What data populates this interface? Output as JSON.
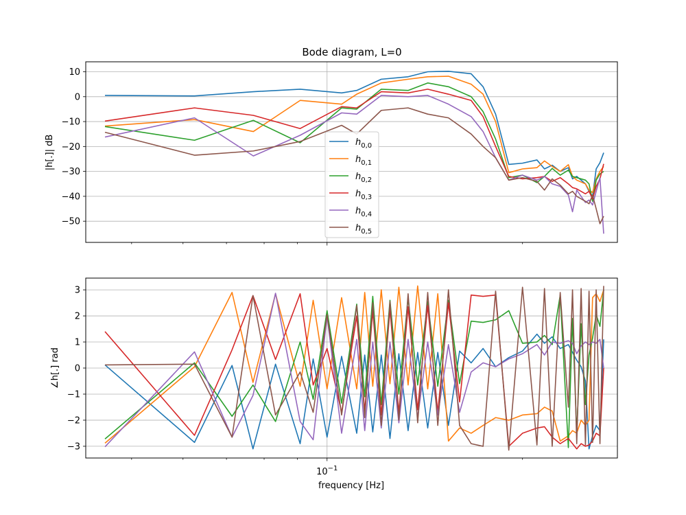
{
  "chart_data": [
    {
      "type": "line",
      "title": "Bode diagram, L=0",
      "ylabel": "|h[.]| dB",
      "xlabel": "",
      "xscale": "log",
      "xlim": [
        0.0425,
        0.28
      ],
      "ylim": [
        -58.5,
        14
      ],
      "yticks": [
        10,
        0,
        -10,
        -20,
        -30,
        -40,
        -50
      ],
      "xticks": [
        {
          "value": 0.1,
          "label": "10",
          "exp": "−1"
        }
      ],
      "grid": true,
      "legend": {
        "placement": "center",
        "entries": [
          "h",
          "h",
          "h",
          "h",
          "h",
          "h"
        ],
        "subscripts": [
          "0,0",
          "0,1",
          "0,2",
          "0,3",
          "0,4",
          "0,5"
        ]
      },
      "x": [
        0.0455,
        0.0625,
        0.077,
        0.0909,
        0.1053,
        0.1111,
        0.1212,
        0.1333,
        0.1429,
        0.1538,
        0.1667,
        0.1739,
        0.1818,
        0.1905,
        0.2,
        0.2105,
        0.2162,
        0.2222,
        0.2286,
        0.2353,
        0.2388,
        0.2424,
        0.25,
        0.2532,
        0.2564,
        0.2597,
        0.2632,
        0.2667
      ],
      "series": [
        {
          "values": [
            0.5,
            0.3,
            2.0,
            3.0,
            1.5,
            2.5,
            7.0,
            8.0,
            10.0,
            10.2,
            9.2,
            4.0,
            -7.0,
            -27.2,
            -26.7,
            -25.4,
            -29.0,
            -27.5,
            -30.0,
            -28.5,
            -33.0,
            -32.0,
            -35.0,
            -38.0,
            -40.0,
            -29.0,
            -26.5,
            -22.5
          ]
        },
        {
          "values": [
            -11.8,
            -9.2,
            -14.0,
            -1.5,
            -3.0,
            1.0,
            5.5,
            7.0,
            8.0,
            8.2,
            5.0,
            1.0,
            -10.0,
            -30.5,
            -29.0,
            -28.5,
            -25.8,
            -28.0,
            -30.0,
            -27.3,
            -32.0,
            -33.5,
            -35.0,
            -37.5,
            -38.5,
            -33.0,
            -30.0,
            -28.0
          ]
        },
        {
          "values": [
            -12.0,
            -17.5,
            -9.5,
            -18.5,
            -4.5,
            -5.0,
            3.0,
            2.5,
            5.5,
            4.0,
            0.0,
            -6.0,
            -17.0,
            -32.5,
            -31.5,
            -34.5,
            -32.0,
            -28.8,
            -31.5,
            -29.5,
            -32.0,
            -32.5,
            -33.5,
            -35.0,
            -42.0,
            -33.5,
            -31.0,
            -30.0
          ]
        },
        {
          "values": [
            -9.8,
            -4.5,
            -7.5,
            -12.8,
            -4.0,
            -4.5,
            2.0,
            1.5,
            3.0,
            1.0,
            -1.5,
            -8.0,
            -20.0,
            -32.0,
            -33.0,
            -32.5,
            -32.0,
            -34.0,
            -32.5,
            -35.0,
            -36.5,
            -37.0,
            -39.0,
            -38.0,
            -41.0,
            -36.0,
            -33.0,
            -27.0
          ]
        },
        {
          "values": [
            -16.2,
            -8.5,
            -23.8,
            -15.5,
            -6.5,
            -7.0,
            0.5,
            0.0,
            0.5,
            -3.0,
            -8.0,
            -14.0,
            -24.5,
            -33.5,
            -31.5,
            -33.5,
            -32.0,
            -35.0,
            -36.0,
            -39.5,
            -46.2,
            -37.5,
            -42.5,
            -41.5,
            -43.5,
            -38.0,
            -32.5,
            -55.0
          ]
        },
        {
          "values": [
            -14.3,
            -23.5,
            -21.8,
            -18.0,
            -11.5,
            -15.0,
            -5.5,
            -4.5,
            -7.0,
            -8.5,
            -15.0,
            -20.0,
            -24.5,
            -33.5,
            -32.5,
            -34.0,
            -37.5,
            -33.0,
            -35.5,
            -39.0,
            -38.0,
            -40.0,
            -42.0,
            -43.0,
            -39.5,
            -45.0,
            -51.0,
            -48.0
          ]
        }
      ]
    },
    {
      "type": "line",
      "title": "",
      "ylabel": "∠h[.] rad",
      "xlabel": "frequency [Hz]",
      "xscale": "log",
      "xlim": [
        0.0425,
        0.28
      ],
      "ylim": [
        -3.45,
        3.45
      ],
      "yticks": [
        3,
        2,
        1,
        0,
        -1,
        -2,
        -3
      ],
      "xticks": [
        {
          "value": 0.1,
          "label": "10",
          "exp": "−1"
        }
      ],
      "grid": true,
      "x": [
        0.0455,
        0.0625,
        0.0714,
        0.0769,
        0.0833,
        0.0909,
        0.0952,
        0.1,
        0.1053,
        0.1111,
        0.1143,
        0.1176,
        0.1212,
        0.125,
        0.129,
        0.1333,
        0.1379,
        0.1429,
        0.1481,
        0.1538,
        0.16,
        0.1667,
        0.1739,
        0.1818,
        0.1905,
        0.2,
        0.2105,
        0.2162,
        0.2222,
        0.2286,
        0.2353,
        0.2388,
        0.2424,
        0.2462,
        0.25,
        0.2532,
        0.2564,
        0.2597,
        0.2632,
        0.2667
      ],
      "series": [
        {
          "values": [
            0.12,
            -2.85,
            0.1,
            -3.1,
            0.15,
            -2.9,
            0.35,
            -2.65,
            0.45,
            -2.5,
            0.5,
            -2.45,
            0.5,
            -2.7,
            0.55,
            -2.4,
            0.6,
            -2.3,
            0.6,
            -2.2,
            0.65,
            0.2,
            0.75,
            0.05,
            0.4,
            0.65,
            1.3,
            0.95,
            1.2,
            0.75,
            0.9,
            0.6,
            0.3,
            0.05,
            -0.5,
            -3.1,
            -2.6,
            -2.2,
            -2.4,
            1.1
          ]
        },
        {
          "values": [
            -2.88,
            0.05,
            2.9,
            -0.55,
            2.85,
            -0.7,
            2.6,
            -0.8,
            2.7,
            -0.8,
            2.9,
            -0.7,
            3.0,
            -0.6,
            3.1,
            -0.65,
            3.15,
            -0.8,
            2.85,
            -2.8,
            -2.3,
            -2.5,
            -2.2,
            -1.9,
            -2.0,
            -1.8,
            -1.75,
            -1.5,
            -1.65,
            -2.8,
            -2.6,
            -2.4,
            -2.5,
            -2.0,
            -2.2,
            -2.0,
            2.7,
            2.85,
            2.55,
            3.0
          ]
        },
        {
          "values": [
            -2.72,
            0.2,
            -1.85,
            -0.65,
            -2.05,
            1.0,
            -1.2,
            2.2,
            -1.35,
            2.45,
            -1.1,
            2.75,
            -1.4,
            2.6,
            -1.0,
            2.7,
            -0.65,
            2.55,
            -0.7,
            2.6,
            -0.6,
            1.8,
            1.75,
            1.85,
            2.2,
            0.95,
            1.0,
            1.25,
            0.9,
            2.8,
            -3.05,
            1.9,
            -2.5,
            1.7,
            -1.4,
            0.5,
            1.15,
            2.05,
            1.6,
            3.0
          ]
        },
        {
          "values": [
            1.4,
            -2.58,
            0.7,
            2.78,
            0.33,
            2.85,
            -0.65,
            0.75,
            -1.7,
            2.0,
            -1.65,
            2.2,
            -1.8,
            2.25,
            -1.7,
            2.35,
            -1.6,
            2.4,
            -1.7,
            2.5,
            -1.3,
            2.8,
            2.75,
            2.8,
            -3.0,
            -2.5,
            -2.3,
            -2.25,
            -2.65,
            -2.9,
            -2.7,
            -2.9,
            -3.1,
            -2.9,
            -3.0,
            -2.95,
            -2.8,
            -2.5,
            -2.6,
            0.0
          ]
        },
        {
          "values": [
            -3.02,
            0.62,
            -2.65,
            -1.05,
            2.87,
            -2.05,
            -2.75,
            2.0,
            -2.5,
            1.1,
            -2.4,
            1.0,
            -2.3,
            1.0,
            -2.1,
            1.1,
            -1.9,
            1.0,
            -1.8,
            0.9,
            -1.7,
            -0.15,
            0.2,
            0.05,
            0.35,
            0.55,
            0.9,
            0.5,
            1.0,
            0.95,
            1.05,
            0.95,
            0.55,
            0.85,
            1.0,
            0.9,
            1.0,
            0.95,
            1.1,
            0.0
          ]
        },
        {
          "values": [
            0.12,
            0.15,
            -2.65,
            2.78,
            -1.8,
            -0.15,
            -1.7,
            2.05,
            -1.8,
            2.4,
            -1.9,
            2.5,
            -2.2,
            2.55,
            -2.0,
            2.85,
            -2.1,
            2.9,
            -2.2,
            3.0,
            -2.2,
            -2.9,
            -3.0,
            2.95,
            -3.15,
            3.1,
            -2.95,
            3.05,
            -3.0,
            2.9,
            -1.5,
            3.0,
            -2.9,
            3.05,
            -2.95,
            2.95,
            -2.85,
            3.0,
            -2.9,
            3.15
          ]
        }
      ]
    }
  ],
  "colors": [
    "#1f77b4",
    "#ff7f0e",
    "#2ca02c",
    "#d62728",
    "#9467bd",
    "#8c564b"
  ]
}
